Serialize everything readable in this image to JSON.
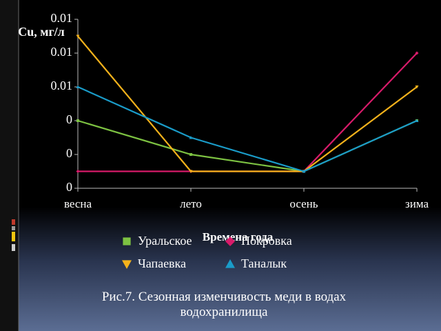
{
  "chart_data": {
    "type": "line",
    "y_label": "Cu, мг/л",
    "x_label": "Времена года",
    "caption": "Рис.7. Сезонная изменчивость меди в водах водохранилища",
    "categories": [
      "весна",
      "лето",
      "осень",
      "зима"
    ],
    "series": [
      {
        "name": "Уральское",
        "color": "#7dc242",
        "marker": "square",
        "values": [
          0.004,
          0.002,
          0.001,
          0.004
        ]
      },
      {
        "name": "Покровка",
        "color": "#d81b6a",
        "marker": "diamond",
        "values": [
          0.001,
          0.001,
          0.001,
          0.008
        ]
      },
      {
        "name": "Чапаевка",
        "color": "#f5b21b",
        "marker": "triangle-down",
        "values": [
          0.009,
          0.001,
          0.001,
          0.006
        ]
      },
      {
        "name": "Таналык",
        "color": "#1a9cc9",
        "marker": "triangle",
        "values": [
          0.006,
          0.003,
          0.001,
          0.004
        ]
      }
    ],
    "ylim": [
      0,
      0.01
    ],
    "yticks": [
      0,
      {
        "value": 0.002,
        "label": "0"
      },
      {
        "value": 0.004,
        "label": "0"
      },
      {
        "value": 0.006,
        "label": "0.01"
      },
      {
        "value": 0.008,
        "label": "0.01"
      },
      0.01
    ],
    "grid": false
  }
}
